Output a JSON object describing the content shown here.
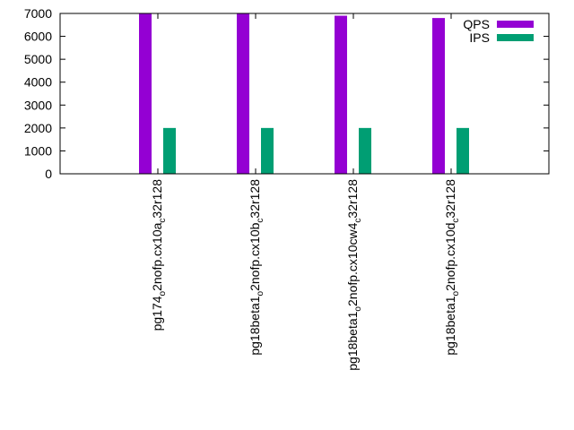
{
  "chart_data": {
    "type": "bar",
    "categories": [
      "pg174_o2nofp.cx10a_c32r128",
      "pg18beta1_o2nofp.cx10b_c32r128",
      "pg18beta1_o2nofp.cx10cw4_c32r128",
      "pg18beta1_o2nofp.cx10d_c32r128"
    ],
    "category_labels": [
      {
        "parts": [
          {
            "t": "pg174",
            "s": 0
          },
          {
            "t": "o",
            "s": 1
          },
          {
            "t": "2nofp.cx10a",
            "s": 0
          },
          {
            "t": "c",
            "s": 1
          },
          {
            "t": "32r128",
            "s": 0
          }
        ]
      },
      {
        "parts": [
          {
            "t": "pg18beta1",
            "s": 0
          },
          {
            "t": "o",
            "s": 1
          },
          {
            "t": "2nofp.cx10b",
            "s": 0
          },
          {
            "t": "c",
            "s": 1
          },
          {
            "t": "32r128",
            "s": 0
          }
        ]
      },
      {
        "parts": [
          {
            "t": "pg18beta1",
            "s": 0
          },
          {
            "t": "o",
            "s": 1
          },
          {
            "t": "2nofp.cx10cw4",
            "s": 0
          },
          {
            "t": "c",
            "s": 1
          },
          {
            "t": "32r128",
            "s": 0
          }
        ]
      },
      {
        "parts": [
          {
            "t": "pg18beta1",
            "s": 0
          },
          {
            "t": "o",
            "s": 1
          },
          {
            "t": "2nofp.cx10d",
            "s": 0
          },
          {
            "t": "c",
            "s": 1
          },
          {
            "t": "32r128",
            "s": 0
          }
        ]
      }
    ],
    "series": [
      {
        "name": "QPS",
        "color": "#9400d3",
        "values": [
          7050,
          7050,
          6900,
          6800
        ]
      },
      {
        "name": "IPS",
        "color": "#009e73",
        "values": [
          2000,
          2000,
          2000,
          2000
        ]
      }
    ],
    "yticks": [
      "0",
      "1000",
      "2000",
      "3000",
      "4000",
      "5000",
      "6000",
      "7000"
    ],
    "ylim": [
      0,
      7000
    ],
    "title": "",
    "xlabel": "",
    "ylabel": "",
    "legend_position": "top-right",
    "grid": false
  }
}
